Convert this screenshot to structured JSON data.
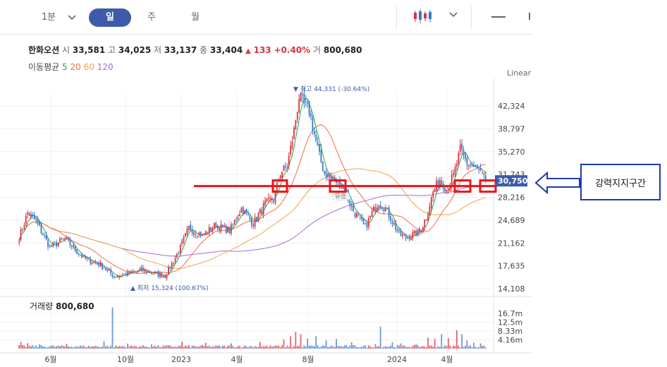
{
  "toolbar": {
    "interval_1m": "1분",
    "tab_day": "일",
    "tab_week": "주",
    "tab_month": "월"
  },
  "stock": {
    "name": "한화오션",
    "open_label": "시",
    "open": "33,581",
    "high_label": "고",
    "high": "34,025",
    "low_label": "저",
    "low": "33,137",
    "close_label": "종",
    "close": "33,404",
    "change_arrow": "▲",
    "change": "133",
    "change_pct": "+0.40%",
    "volume_label": "거",
    "volume": "800,680"
  },
  "ma": {
    "label": "이동평균",
    "periods": [
      {
        "label": "5",
        "color": "#27a54a"
      },
      {
        "label": "20",
        "color": "#f06b4a"
      },
      {
        "label": "60",
        "color": "#f3a14a"
      },
      {
        "label": "120",
        "color": "#a56bdc"
      }
    ]
  },
  "scale_type": "Linear",
  "callout": {
    "text": "강력지지구간"
  },
  "colors": {
    "up": "#d9333f",
    "down": "#3a78c9",
    "support_line": "#e8141b",
    "current_badge": "#3d5ba9",
    "callout_border": "#1f3aa8"
  },
  "chart_data": {
    "type": "candlestick",
    "price_axis": {
      "ticks": [
        "42,324",
        "38,797",
        "35,270",
        "31,743",
        "28,216",
        "24,689",
        "21,162",
        "17,635",
        "14,108"
      ],
      "range": [
        14108,
        45850
      ]
    },
    "volume_axis": {
      "ticks": [
        "16.7m",
        "12.5m",
        "8.33m",
        "4.16m"
      ],
      "range": [
        0,
        20800000
      ]
    },
    "time_axis": {
      "ticks": [
        "6월",
        "10월",
        "2023",
        "4월",
        "8월",
        "2024",
        "4월"
      ]
    },
    "current_price": "30,750",
    "support_level": 30000,
    "annotations": {
      "high": {
        "arrow": "▼",
        "label": "최고",
        "value": "44,331",
        "pct": "(-30.64%)"
      },
      "low": {
        "arrow": "▲",
        "label": "최저",
        "value": "15,324",
        "pct": "(100.67%)"
      },
      "event": "유증"
    },
    "volume_title": "거래량",
    "volume_value": "800,680",
    "price_anchors": [
      [
        0,
        22000
      ],
      [
        5,
        25800
      ],
      [
        10,
        24500
      ],
      [
        18,
        20500
      ],
      [
        27,
        21800
      ],
      [
        38,
        18800
      ],
      [
        48,
        17800
      ],
      [
        56,
        16000
      ],
      [
        66,
        16500
      ],
      [
        72,
        17000
      ],
      [
        82,
        16300
      ],
      [
        86,
        16100
      ],
      [
        94,
        19800
      ],
      [
        100,
        23500
      ],
      [
        108,
        22300
      ],
      [
        116,
        24000
      ],
      [
        124,
        23000
      ],
      [
        131,
        26500
      ],
      [
        138,
        24200
      ],
      [
        145,
        27200
      ],
      [
        150,
        28000
      ],
      [
        154,
        32000
      ],
      [
        158,
        33000
      ],
      [
        162,
        38500
      ],
      [
        165,
        43800
      ],
      [
        168,
        42500
      ],
      [
        171,
        41500
      ],
      [
        174,
        38000
      ],
      [
        177,
        34500
      ],
      [
        180,
        32000
      ],
      [
        184,
        31000
      ],
      [
        188,
        30500
      ],
      [
        192,
        29500
      ],
      [
        196,
        26500
      ],
      [
        200,
        25000
      ],
      [
        204,
        23500
      ],
      [
        208,
        25800
      ],
      [
        212,
        27500
      ],
      [
        216,
        26500
      ],
      [
        220,
        24500
      ],
      [
        224,
        22500
      ],
      [
        228,
        22000
      ],
      [
        232,
        22500
      ],
      [
        236,
        22800
      ],
      [
        240,
        25200
      ],
      [
        244,
        29000
      ],
      [
        248,
        31000
      ],
      [
        252,
        29500
      ],
      [
        256,
        31500
      ],
      [
        260,
        35500
      ],
      [
        264,
        33500
      ],
      [
        268,
        32800
      ],
      [
        272,
        32000
      ],
      [
        275,
        30750
      ]
    ],
    "volume_spikes": [
      [
        1,
        3200000
      ],
      [
        5,
        2600000
      ],
      [
        12,
        2100000
      ],
      [
        28,
        2300000
      ],
      [
        50,
        3500000
      ],
      [
        55,
        19500000
      ],
      [
        64,
        2400000
      ],
      [
        78,
        2100000
      ],
      [
        96,
        3300000
      ],
      [
        110,
        2800000
      ],
      [
        125,
        2500000
      ],
      [
        142,
        3200000
      ],
      [
        156,
        4300000
      ],
      [
        160,
        5800000
      ],
      [
        163,
        8000000
      ],
      [
        166,
        6800000
      ],
      [
        170,
        4800000
      ],
      [
        175,
        5900000
      ],
      [
        181,
        3900000
      ],
      [
        187,
        4600000
      ],
      [
        196,
        3000000
      ],
      [
        210,
        2200000
      ],
      [
        213,
        10500000
      ],
      [
        220,
        3000000
      ],
      [
        225,
        2500000
      ],
      [
        234,
        2100000
      ],
      [
        241,
        5200000
      ],
      [
        245,
        4600000
      ],
      [
        249,
        6800000
      ],
      [
        253,
        4900000
      ],
      [
        258,
        8700000
      ],
      [
        261,
        6900000
      ],
      [
        264,
        3900000
      ],
      [
        268,
        2800000
      ],
      [
        272,
        2500000
      ]
    ]
  }
}
